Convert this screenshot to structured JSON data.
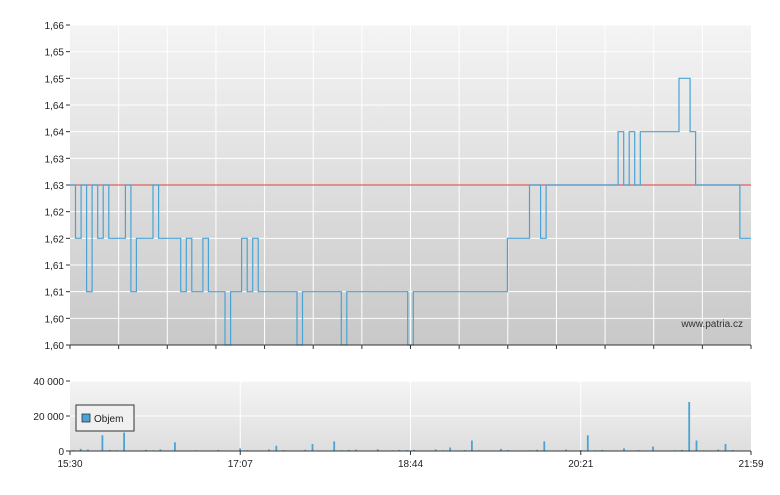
{
  "watermark": "www.patria.cz",
  "colors": {
    "price_line": "#4aa3d4",
    "reference_line": "#e06060",
    "volume_bar": "#4aa3d4",
    "grid": "#ffffff",
    "plot_bg_top": "#f4f4f4",
    "plot_bg_bottom": "#c8c8c8",
    "axis": "#333333"
  },
  "chart_data": [
    {
      "type": "line",
      "ylim": [
        1.6,
        1.66
      ],
      "y_tick_labels": [
        "1,60",
        "1,60",
        "1,61",
        "1,61",
        "1,62",
        "1,62",
        "1,63",
        "1,63",
        "1,64",
        "1,64",
        "1,65",
        "1,65",
        "1,66"
      ],
      "reference_value": 1.63,
      "grid": true,
      "series": [
        {
          "values": [
            1.63,
            1.62,
            1.63,
            1.61,
            1.63,
            1.62,
            1.63,
            1.62,
            1.62,
            1.62,
            1.63,
            1.61,
            1.62,
            1.62,
            1.62,
            1.63,
            1.62,
            1.62,
            1.62,
            1.62,
            1.61,
            1.62,
            1.61,
            1.61,
            1.62,
            1.61,
            1.61,
            1.61,
            1.6,
            1.61,
            1.61,
            1.62,
            1.61,
            1.62,
            1.61,
            1.61,
            1.61,
            1.61,
            1.61,
            1.61,
            1.61,
            1.6,
            1.61,
            1.61,
            1.61,
            1.61,
            1.61,
            1.61,
            1.61,
            1.6,
            1.61,
            1.61,
            1.61,
            1.61,
            1.61,
            1.61,
            1.61,
            1.61,
            1.61,
            1.61,
            1.61,
            1.6,
            1.61,
            1.61,
            1.61,
            1.61,
            1.61,
            1.61,
            1.61,
            1.61,
            1.61,
            1.61,
            1.61,
            1.61,
            1.61,
            1.61,
            1.61,
            1.61,
            1.61,
            1.62,
            1.62,
            1.62,
            1.62,
            1.63,
            1.63,
            1.62,
            1.63,
            1.63,
            1.63,
            1.63,
            1.63,
            1.63,
            1.63,
            1.63,
            1.63,
            1.63,
            1.63,
            1.63,
            1.63,
            1.64,
            1.63,
            1.64,
            1.63,
            1.64,
            1.64,
            1.64,
            1.64,
            1.64,
            1.64,
            1.64,
            1.65,
            1.65,
            1.64,
            1.63,
            1.63,
            1.63,
            1.63,
            1.63,
            1.63,
            1.63,
            1.63,
            1.62,
            1.62,
            1.62
          ]
        }
      ]
    },
    {
      "type": "bar",
      "ylim": [
        0,
        40000
      ],
      "y_tick_labels": [
        "0",
        "20 000",
        "40 000"
      ],
      "x_tick_labels": [
        "15:30",
        "17:07",
        "18:44",
        "20:21",
        "21:59"
      ],
      "grid": true,
      "legend": "top-left",
      "series": [
        {
          "name": "Objem",
          "values": [
            500,
            1200,
            800,
            300,
            9000,
            600,
            400,
            10500,
            300,
            200,
            700,
            400,
            900,
            300,
            5000,
            200,
            300,
            400,
            200,
            100,
            600,
            300,
            200,
            1500,
            400,
            200,
            300,
            900,
            3000,
            500,
            200,
            300,
            700,
            4000,
            300,
            200,
            5500,
            400,
            600,
            800,
            300,
            200,
            1000,
            300,
            400,
            600,
            500,
            700,
            200,
            300,
            900,
            400,
            2000,
            300,
            500,
            6000,
            400,
            300,
            200,
            1200,
            500,
            300,
            200,
            400,
            700,
            5500,
            300,
            200,
            800,
            300,
            500,
            9000,
            400,
            600,
            200,
            300,
            1500,
            300,
            500,
            200,
            2500,
            300,
            200,
            400,
            600,
            28000,
            6000,
            400,
            300,
            800,
            4000,
            500,
            300,
            200
          ]
        }
      ]
    }
  ]
}
